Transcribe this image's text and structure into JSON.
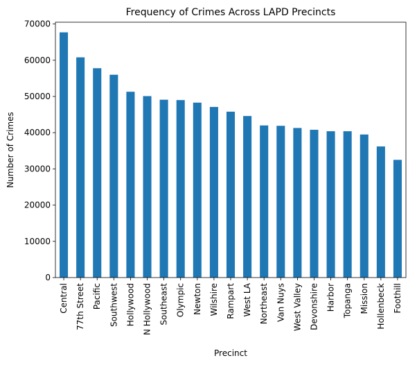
{
  "chart_data": {
    "type": "bar",
    "title": "Frequency of Crimes Across LAPD Precincts",
    "xlabel": "Precinct",
    "ylabel": "Number of Crimes",
    "ylim": [
      0,
      70500
    ],
    "yticks": [
      0,
      10000,
      20000,
      30000,
      40000,
      50000,
      60000,
      70000
    ],
    "grid": false,
    "bar_color": "#1f77b4",
    "categories": [
      "Central",
      "77th Street",
      "Pacific",
      "Southwest",
      "Hollywood",
      "N Hollywood",
      "Southeast",
      "Olympic",
      "Newton",
      "Wilshire",
      "Rampart",
      "West LA",
      "Northeast",
      "Van Nuys",
      "West Valley",
      "Devonshire",
      "Harbor",
      "Topanga",
      "Mission",
      "Hollenbeck",
      "Foothill"
    ],
    "values": [
      67700,
      60800,
      57800,
      56000,
      51300,
      50100,
      49100,
      49000,
      48300,
      47100,
      45800,
      44600,
      42000,
      41900,
      41300,
      40800,
      40400,
      40400,
      39500,
      36200,
      32500
    ]
  }
}
